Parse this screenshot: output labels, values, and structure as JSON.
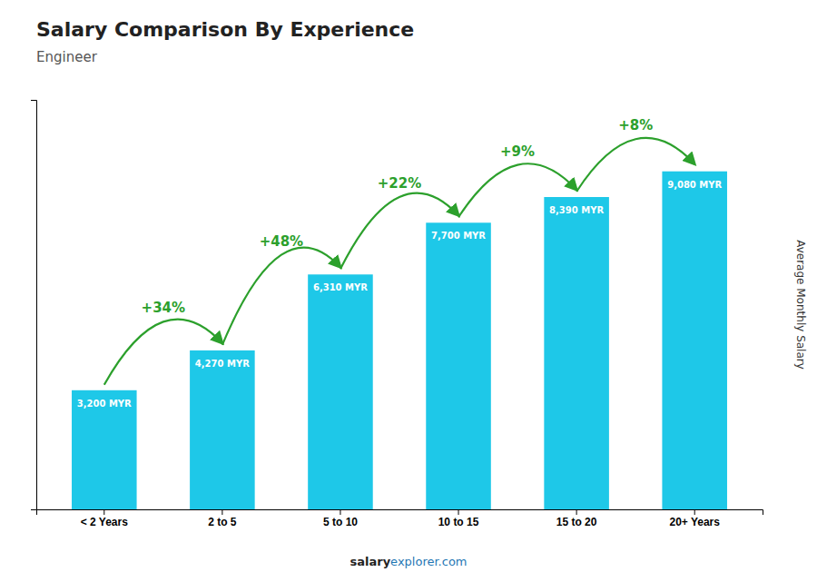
{
  "chart_data": {
    "type": "bar",
    "title": "Salary Comparison By Experience",
    "subtitle": "Engineer",
    "y_label": "Average Monthly Salary",
    "categories": [
      "< 2 Years",
      "2 to 5",
      "5 to 10",
      "10 to 15",
      "15 to 20",
      "20+ Years"
    ],
    "values": [
      3200,
      4270,
      6310,
      7700,
      8390,
      9080
    ],
    "value_labels": [
      "3,200 MYR",
      "4,270 MYR",
      "6,310 MYR",
      "7,700 MYR",
      "8,390 MYR",
      "9,080 MYR"
    ],
    "data_labels": true,
    "color": "#1ec8e8",
    "ylim": [
      0,
      11000
    ],
    "tick_labels": "x",
    "grid": false,
    "annotations": [
      {
        "text": "+34%",
        "from": "< 2 Years",
        "to": "2 to 5"
      },
      {
        "text": "+48%",
        "from": "2 to 5",
        "to": "5 to 10"
      },
      {
        "text": "+22%",
        "from": "5 to 10",
        "to": "10 to 15"
      },
      {
        "text": "+9%",
        "from": "10 to 15",
        "to": "15 to 20"
      },
      {
        "text": "+8%",
        "from": "15 to 20",
        "to": "20+ Years"
      }
    ],
    "footer": [
      "salary",
      "explorer.com"
    ]
  }
}
